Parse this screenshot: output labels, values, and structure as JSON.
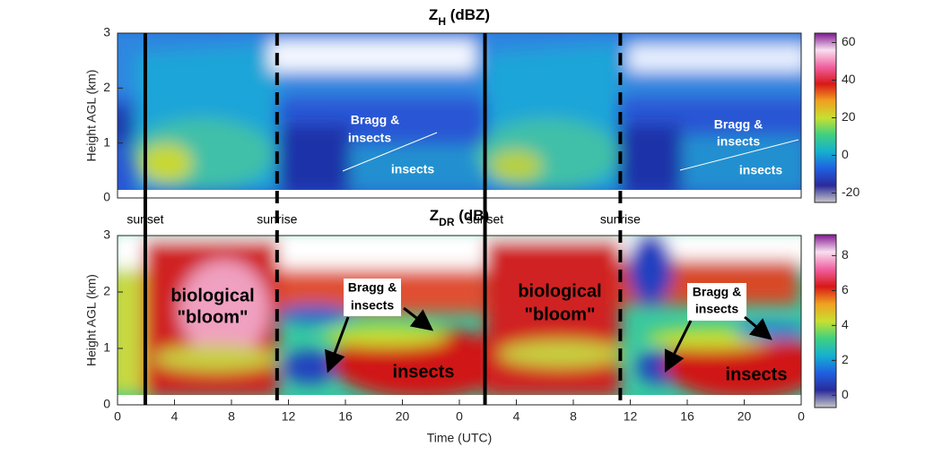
{
  "chart_data": [
    {
      "type": "heatmap",
      "title": {
        "symbol": "Z",
        "subscript": "H",
        "units": "(dBZ)"
      },
      "ylabel": "Height AGL (km)",
      "xlim": [
        0,
        48
      ],
      "ylim": [
        0,
        3
      ],
      "yticks": [
        0,
        1,
        2,
        3
      ],
      "colorbar": {
        "lim": [
          -25,
          65
        ],
        "ticks": [
          -20,
          0,
          20,
          40,
          60
        ]
      },
      "colormap": [
        "#c8c8c8",
        "#2a2a9a",
        "#1f60e0",
        "#15b0d0",
        "#40d080",
        "#c8e030",
        "#f0a020",
        "#d81818",
        "#f060a0",
        "#f8e0f0",
        "#801890"
      ],
      "annotations": [
        {
          "lines": [
            "Bragg &",
            "insects"
          ]
        },
        {
          "lines": [
            "insects"
          ]
        },
        {
          "lines": [
            "Bragg &",
            "insects"
          ]
        },
        {
          "lines": [
            "insects"
          ]
        }
      ]
    },
    {
      "type": "heatmap",
      "title": {
        "symbol": "Z",
        "subscript": "DR",
        "units": "(dB)"
      },
      "ylabel": "Height AGL (km)",
      "xlabel": "Time (UTC)",
      "xlim": [
        0,
        48
      ],
      "ylim": [
        0,
        3
      ],
      "yticks": [
        0,
        1,
        2,
        3
      ],
      "xticks": [
        0,
        4,
        8,
        12,
        16,
        20,
        {
          "value": 24,
          "label": "0"
        },
        {
          "value": 28,
          "label": "4"
        },
        {
          "value": 32,
          "label": "8"
        },
        {
          "value": 36,
          "label": "12"
        },
        {
          "value": 40,
          "label": "16"
        },
        {
          "value": 44,
          "label": "20"
        },
        {
          "value": 48,
          "label": "0"
        }
      ],
      "colorbar": {
        "lim": [
          -0.7,
          9.2
        ],
        "ticks": [
          0,
          2,
          4,
          6,
          8
        ]
      },
      "colormap": [
        "#c8c8c8",
        "#2a2a9a",
        "#1f60e0",
        "#15b0d0",
        "#40d080",
        "#c8e030",
        "#f0a020",
        "#d81818",
        "#f060a0",
        "#f8e0f0",
        "#801890"
      ],
      "events": [
        {
          "label": "sunset",
          "x": 1.95,
          "style": "solid"
        },
        {
          "label": "sunrise",
          "x": 11.2,
          "style": "dashed"
        },
        {
          "label": "sunset",
          "x": 25.8,
          "style": "solid"
        },
        {
          "label": "sunrise",
          "x": 35.3,
          "style": "dashed"
        }
      ],
      "annotations": [
        {
          "lines": [
            "biological",
            "\"bloom\""
          ]
        },
        {
          "lines": [
            "Bragg &",
            "insects"
          ]
        },
        {
          "lines": [
            "insects"
          ]
        },
        {
          "lines": [
            "biological",
            "\"bloom\""
          ]
        },
        {
          "lines": [
            "Bragg &",
            "insects"
          ]
        },
        {
          "lines": [
            "insects"
          ]
        }
      ]
    }
  ]
}
